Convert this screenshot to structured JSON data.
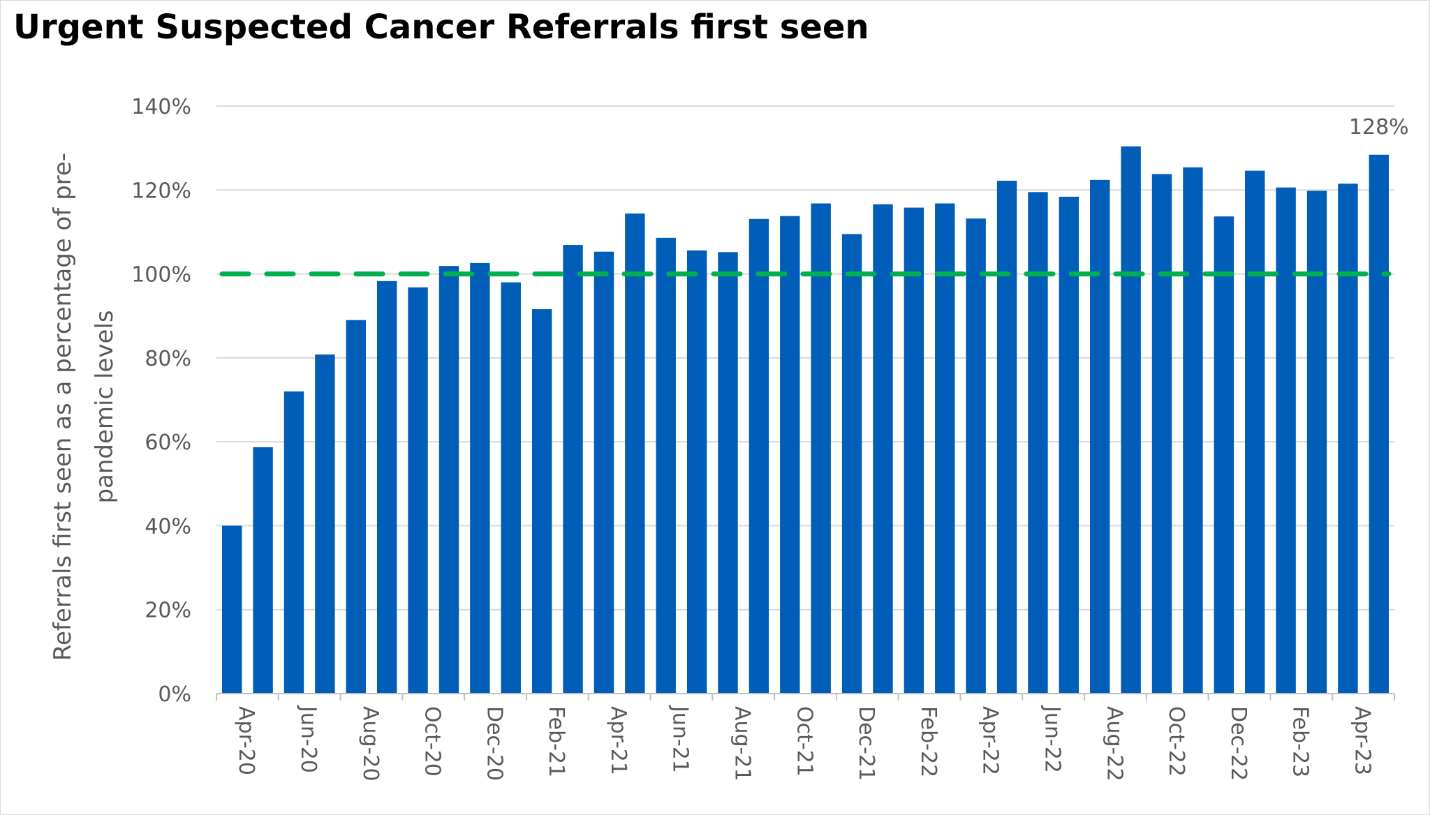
{
  "chart_data": {
    "type": "bar",
    "title": "Urgent Suspected Cancer Referrals first seen",
    "ylabel_lines": [
      "Referrals first seen as a percentage of pre-",
      "pandemic levels"
    ],
    "xlabel": "",
    "ylim": [
      0,
      140
    ],
    "yticks": [
      0,
      20,
      40,
      60,
      80,
      100,
      120,
      140
    ],
    "ytick_suffix": "%",
    "grid": true,
    "categories": [
      "Apr-20",
      "May-20",
      "Jun-20",
      "Jul-20",
      "Aug-20",
      "Sep-20",
      "Oct-20",
      "Nov-20",
      "Dec-20",
      "Jan-21",
      "Feb-21",
      "Mar-21",
      "Apr-21",
      "May-21",
      "Jun-21",
      "Jul-21",
      "Aug-21",
      "Sep-21",
      "Oct-21",
      "Nov-21",
      "Dec-21",
      "Jan-22",
      "Feb-22",
      "Mar-22",
      "Apr-22",
      "May-22",
      "Jun-22",
      "Jul-22",
      "Aug-22",
      "Sep-22",
      "Oct-22",
      "Nov-22",
      "Dec-22",
      "Jan-23",
      "Feb-23",
      "Mar-23",
      "Apr-23",
      "May-23"
    ],
    "tick_labels": [
      "Apr-20",
      "",
      "Jun-20",
      "",
      "Aug-20",
      "",
      "Oct-20",
      "",
      "Dec-20",
      "",
      "Feb-21",
      "",
      "Apr-21",
      "",
      "Jun-21",
      "",
      "Aug-21",
      "",
      "Oct-21",
      "",
      "Dec-21",
      "",
      "Feb-22",
      "",
      "Apr-22",
      "",
      "Jun-22",
      "",
      "Aug-22",
      "",
      "Oct-22",
      "",
      "Dec-22",
      "",
      "Feb-23",
      "",
      "Apr-23",
      ""
    ],
    "values": [
      40,
      58.7,
      72,
      80.8,
      89,
      98.3,
      96.8,
      101.9,
      102.6,
      98,
      91.6,
      106.9,
      105.3,
      114.4,
      108.6,
      105.6,
      105.2,
      113.1,
      113.8,
      116.8,
      109.5,
      116.6,
      115.8,
      116.8,
      113.2,
      122.2,
      119.5,
      118.4,
      122.4,
      130.4,
      123.8,
      125.4,
      113.7,
      124.6,
      120.6,
      119.8,
      121.5,
      128.4
    ],
    "bar_color": "#005EB8",
    "reference_line": {
      "value": 100,
      "color": "#00B050",
      "style": "dashed"
    },
    "data_labels": [
      {
        "index": 37,
        "text": "128%"
      }
    ]
  }
}
